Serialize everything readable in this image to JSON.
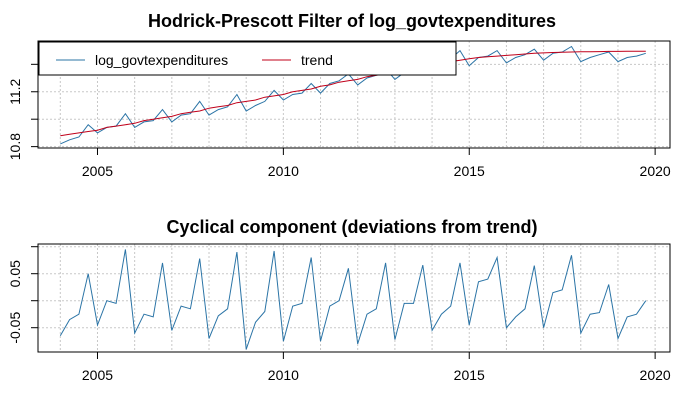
{
  "colors": {
    "series": "#2b74a6",
    "trend": "#c0001a"
  },
  "chart_data": [
    {
      "type": "line",
      "title": "Hodrick-Prescott Filter of log_govtexpenditures",
      "xlim": [
        2003.4,
        2020.4
      ],
      "ylim": [
        10.79,
        11.57
      ],
      "xticks": [
        2005,
        2010,
        2015,
        2020
      ],
      "yticks": [
        10.8,
        11.2
      ],
      "xtick_labels": [
        "2005",
        "2010",
        "2015",
        "2020"
      ],
      "ytick_labels": [
        "10.8",
        "11.2"
      ],
      "grid": true,
      "legend": {
        "placement": "top-left",
        "entries": [
          "log_govtexpenditures",
          "trend"
        ]
      },
      "series": [
        {
          "name": "log_govtexpenditures",
          "color": "#2b74a6",
          "x": [
            2004.0,
            2004.25,
            2004.5,
            2004.75,
            2005.0,
            2005.25,
            2005.5,
            2005.75,
            2006.0,
            2006.25,
            2006.5,
            2006.75,
            2007.0,
            2007.25,
            2007.5,
            2007.75,
            2008.0,
            2008.25,
            2008.5,
            2008.75,
            2009.0,
            2009.25,
            2009.5,
            2009.75,
            2010.0,
            2010.25,
            2010.5,
            2010.75,
            2011.0,
            2011.25,
            2011.5,
            2011.75,
            2012.0,
            2012.25,
            2012.5,
            2012.75,
            2013.0,
            2013.25,
            2013.5,
            2013.75,
            2014.0,
            2014.25,
            2014.5,
            2014.75,
            2015.0,
            2015.25,
            2015.5,
            2015.75,
            2016.0,
            2016.25,
            2016.5,
            2016.75,
            2017.0,
            2017.25,
            2017.5,
            2017.75,
            2018.0,
            2018.25,
            2018.5,
            2018.75,
            2019.0,
            2019.25,
            2019.5,
            2019.75
          ],
          "values": [
            10.82,
            10.85,
            10.87,
            10.96,
            10.9,
            10.94,
            10.95,
            11.04,
            10.94,
            10.98,
            10.99,
            11.07,
            10.98,
            11.03,
            11.04,
            11.13,
            11.03,
            11.07,
            11.09,
            11.18,
            11.06,
            11.1,
            11.13,
            11.21,
            11.14,
            11.18,
            11.19,
            11.26,
            11.19,
            11.26,
            11.28,
            11.33,
            11.25,
            11.3,
            11.32,
            11.37,
            11.29,
            11.34,
            11.37,
            11.42,
            11.37,
            11.42,
            11.44,
            11.5,
            11.39,
            11.45,
            11.46,
            11.5,
            11.41,
            11.45,
            11.47,
            11.51,
            11.43,
            11.48,
            11.49,
            11.53,
            11.42,
            11.45,
            11.47,
            11.49,
            11.42,
            11.45,
            11.46,
            11.48
          ]
        },
        {
          "name": "trend",
          "color": "#c0001a",
          "x": [
            2004.0,
            2004.25,
            2004.5,
            2004.75,
            2005.0,
            2005.25,
            2005.5,
            2005.75,
            2006.0,
            2006.25,
            2006.5,
            2006.75,
            2007.0,
            2007.25,
            2007.5,
            2007.75,
            2008.0,
            2008.25,
            2008.5,
            2008.75,
            2009.0,
            2009.25,
            2009.5,
            2009.75,
            2010.0,
            2010.25,
            2010.5,
            2010.75,
            2011.0,
            2011.25,
            2011.5,
            2011.75,
            2012.0,
            2012.25,
            2012.5,
            2012.75,
            2013.0,
            2013.25,
            2013.5,
            2013.75,
            2014.0,
            2014.25,
            2014.5,
            2014.75,
            2015.0,
            2015.25,
            2015.5,
            2015.75,
            2016.0,
            2016.25,
            2016.5,
            2016.75,
            2017.0,
            2017.25,
            2017.5,
            2017.75,
            2018.0,
            2018.25,
            2018.5,
            2018.75,
            2019.0,
            2019.25,
            2019.5,
            2019.75
          ],
          "values": [
            10.88,
            10.89,
            10.9,
            10.91,
            10.92,
            10.94,
            10.95,
            10.96,
            10.97,
            10.99,
            11.0,
            11.01,
            11.02,
            11.04,
            11.05,
            11.06,
            11.08,
            11.09,
            11.1,
            11.12,
            11.13,
            11.14,
            11.16,
            11.17,
            11.18,
            11.2,
            11.21,
            11.22,
            11.24,
            11.25,
            11.27,
            11.28,
            11.29,
            11.31,
            11.32,
            11.33,
            11.35,
            11.36,
            11.37,
            11.39,
            11.4,
            11.41,
            11.42,
            11.43,
            11.44,
            11.45,
            11.455,
            11.46,
            11.465,
            11.47,
            11.475,
            11.48,
            11.483,
            11.486,
            11.488,
            11.49,
            11.491,
            11.492,
            11.493,
            11.494,
            11.494,
            11.495,
            11.495,
            11.495
          ]
        }
      ]
    },
    {
      "type": "line",
      "title": "Cyclical component (deviations from trend)",
      "xlim": [
        2003.4,
        2020.4
      ],
      "ylim": [
        -0.095,
        0.105
      ],
      "xticks": [
        2005,
        2010,
        2015,
        2020
      ],
      "yticks": [
        -0.05,
        0.05
      ],
      "xtick_labels": [
        "2005",
        "2010",
        "2015",
        "2020"
      ],
      "ytick_labels": [
        "-0.05",
        "0.05"
      ],
      "grid": true,
      "series": [
        {
          "color": "#2b74a6",
          "x": [
            2004.0,
            2004.25,
            2004.5,
            2004.75,
            2005.0,
            2005.25,
            2005.5,
            2005.75,
            2006.0,
            2006.25,
            2006.5,
            2006.75,
            2007.0,
            2007.25,
            2007.5,
            2007.75,
            2008.0,
            2008.25,
            2008.5,
            2008.75,
            2009.0,
            2009.25,
            2009.5,
            2009.75,
            2010.0,
            2010.25,
            2010.5,
            2010.75,
            2011.0,
            2011.25,
            2011.5,
            2011.75,
            2012.0,
            2012.25,
            2012.5,
            2012.75,
            2013.0,
            2013.25,
            2013.5,
            2013.75,
            2014.0,
            2014.25,
            2014.5,
            2014.75,
            2015.0,
            2015.25,
            2015.5,
            2015.75,
            2016.0,
            2016.25,
            2016.5,
            2016.75,
            2017.0,
            2017.25,
            2017.5,
            2017.75,
            2018.0,
            2018.25,
            2018.5,
            2018.75,
            2019.0,
            2019.25,
            2019.5,
            2019.75
          ],
          "values": [
            -0.065,
            -0.035,
            -0.025,
            0.05,
            -0.045,
            0.0,
            -0.005,
            0.095,
            -0.06,
            -0.025,
            -0.03,
            0.07,
            -0.055,
            -0.01,
            -0.015,
            0.078,
            -0.07,
            -0.028,
            -0.015,
            0.09,
            -0.09,
            -0.04,
            -0.02,
            0.092,
            -0.075,
            -0.01,
            -0.005,
            0.08,
            -0.075,
            -0.01,
            0.0,
            0.06,
            -0.08,
            -0.025,
            -0.015,
            0.07,
            -0.072,
            -0.005,
            -0.005,
            0.066,
            -0.055,
            -0.025,
            -0.01,
            0.07,
            -0.045,
            0.035,
            0.04,
            0.08,
            -0.05,
            -0.03,
            -0.015,
            0.065,
            -0.05,
            0.015,
            0.02,
            0.084,
            -0.06,
            -0.025,
            -0.022,
            0.03,
            -0.07,
            -0.03,
            -0.025,
            0.0
          ]
        }
      ]
    }
  ]
}
